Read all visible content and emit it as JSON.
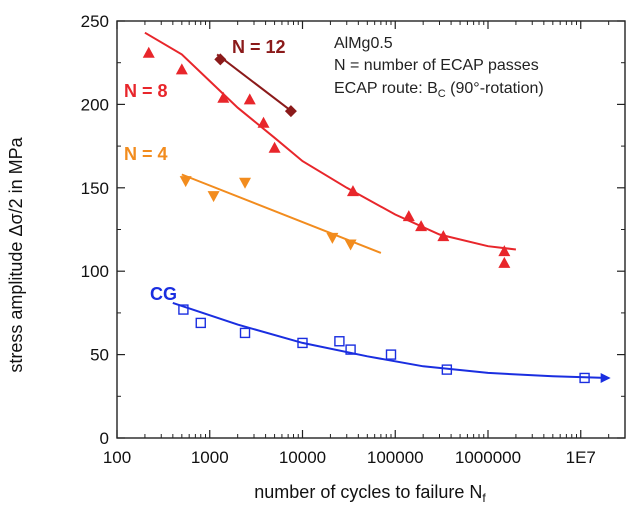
{
  "chart_data": {
    "type": "scatter",
    "xscale": "log",
    "xlim": [
      100,
      30000000
    ],
    "ylim": [
      0,
      250
    ],
    "xticks": [
      "100",
      "1000",
      "10000",
      "100000",
      "1000000",
      "1E7"
    ],
    "yticks": [
      "0",
      "50",
      "100",
      "150",
      "200",
      "250"
    ],
    "xlabel": "number of cycles to failure N",
    "xlabel_sub": "f",
    "ylabel": "stress amplitude Δσ/2 in MPa",
    "annotations": {
      "material": "AlMg0.5",
      "passes": "N = number of ECAP passes",
      "route_prefix": "ECAP route: B",
      "route_sub": "C",
      "route_suffix": " (90°-rotation)"
    },
    "series": [
      {
        "label": "N = 12",
        "color": "#8b1a1a",
        "marker": "diamond",
        "points": [
          [
            1300,
            227
          ],
          [
            7500,
            196
          ]
        ],
        "fit": [
          [
            1200,
            230
          ],
          [
            8000,
            195
          ]
        ]
      },
      {
        "label": "N = 8",
        "color": "#e8262b",
        "marker": "triangle-up",
        "points": [
          [
            220,
            231
          ],
          [
            500,
            221
          ],
          [
            1400,
            204
          ],
          [
            2700,
            203
          ],
          [
            3800,
            189
          ],
          [
            5000,
            174
          ],
          [
            35000,
            148
          ],
          [
            140000,
            133
          ],
          [
            190000,
            127
          ],
          [
            330000,
            121
          ],
          [
            1500000,
            112
          ],
          [
            1500000,
            105
          ]
        ],
        "fit": [
          [
            200,
            243
          ],
          [
            500,
            230
          ],
          [
            1000,
            214
          ],
          [
            2000,
            198
          ],
          [
            5000,
            180
          ],
          [
            10000,
            166
          ],
          [
            30000,
            150
          ],
          [
            100000,
            134
          ],
          [
            300000,
            122
          ],
          [
            1000000,
            115
          ],
          [
            2000000,
            113
          ]
        ]
      },
      {
        "label": "N = 4",
        "color": "#f28c1e",
        "marker": "triangle-down",
        "points": [
          [
            550,
            154
          ],
          [
            1100,
            145
          ],
          [
            2400,
            153
          ],
          [
            21000,
            120
          ],
          [
            33000,
            116
          ]
        ],
        "fit": [
          [
            500,
            158
          ],
          [
            70000,
            111
          ]
        ]
      },
      {
        "label": "CG",
        "color": "#1a2ee0",
        "marker": "square-open",
        "points": [
          [
            520,
            77
          ],
          [
            800,
            69
          ],
          [
            2400,
            63
          ],
          [
            10000,
            57
          ],
          [
            25000,
            58
          ],
          [
            33000,
            53
          ],
          [
            90000,
            50
          ],
          [
            360000,
            41
          ],
          [
            11000000,
            36
          ]
        ],
        "fit": [
          [
            400,
            81
          ],
          [
            2000,
            68
          ],
          [
            10000,
            57
          ],
          [
            50000,
            49
          ],
          [
            200000,
            43
          ],
          [
            1000000,
            39
          ],
          [
            5000000,
            37
          ],
          [
            20000000,
            36
          ]
        ],
        "arrow": true
      }
    ]
  }
}
